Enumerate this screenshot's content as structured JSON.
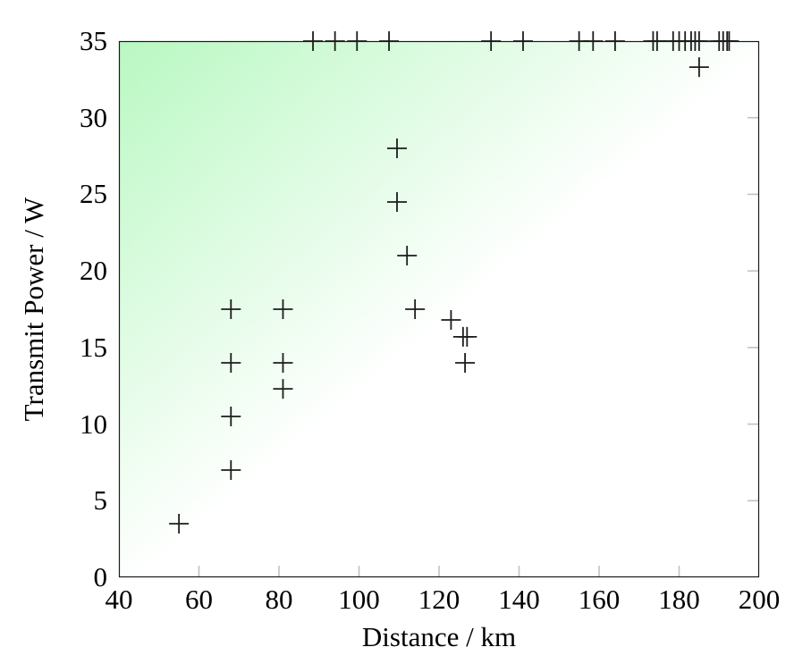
{
  "figure": {
    "background_color": "#ffffff",
    "border_color": "#1a1a1a",
    "tick_color": "#c2c2c2"
  },
  "chart_data": {
    "type": "scatter",
    "title": "",
    "xlabel": "Distance / km",
    "ylabel": "Transmit Power / W",
    "xlim": [
      40,
      200
    ],
    "ylim": [
      0,
      35
    ],
    "xticks": [
      40,
      60,
      80,
      100,
      120,
      140,
      160,
      180,
      200
    ],
    "yticks": [
      0,
      5,
      10,
      15,
      20,
      25,
      30,
      35
    ],
    "grid": false,
    "legend": null,
    "marker": "plus",
    "marker_color": "#1c1c1c",
    "marker_size": 22,
    "background_gradient": {
      "from_color": "#b9f8c2",
      "to_color": "#ffffff",
      "direction": "top-left to bottom-right",
      "white_stop_percent": 52
    },
    "points": [
      [
        55,
        3.5
      ],
      [
        68,
        7
      ],
      [
        68,
        10.5
      ],
      [
        68,
        14
      ],
      [
        68,
        17.5
      ],
      [
        81,
        12.3
      ],
      [
        81,
        14
      ],
      [
        81,
        17.5
      ],
      [
        109.5,
        24.5
      ],
      [
        109.5,
        28
      ],
      [
        112,
        21
      ],
      [
        114,
        17.5
      ],
      [
        123,
        16.8
      ],
      [
        126,
        15.7
      ],
      [
        127,
        15.7
      ],
      [
        126.5,
        14
      ],
      [
        185,
        33.3
      ],
      [
        88.5,
        35
      ],
      [
        94,
        35
      ],
      [
        99.5,
        35
      ],
      [
        107.5,
        35
      ],
      [
        133,
        35
      ],
      [
        141,
        35
      ],
      [
        155,
        35
      ],
      [
        158.5,
        35
      ],
      [
        164,
        35
      ],
      [
        173.5,
        35
      ],
      [
        174.5,
        35
      ],
      [
        178.5,
        35
      ],
      [
        180,
        35
      ],
      [
        181.5,
        35
      ],
      [
        183,
        35
      ],
      [
        184,
        35
      ],
      [
        185,
        35
      ],
      [
        190,
        35
      ],
      [
        191,
        35
      ],
      [
        192,
        35
      ],
      [
        192.5,
        35
      ]
    ]
  }
}
